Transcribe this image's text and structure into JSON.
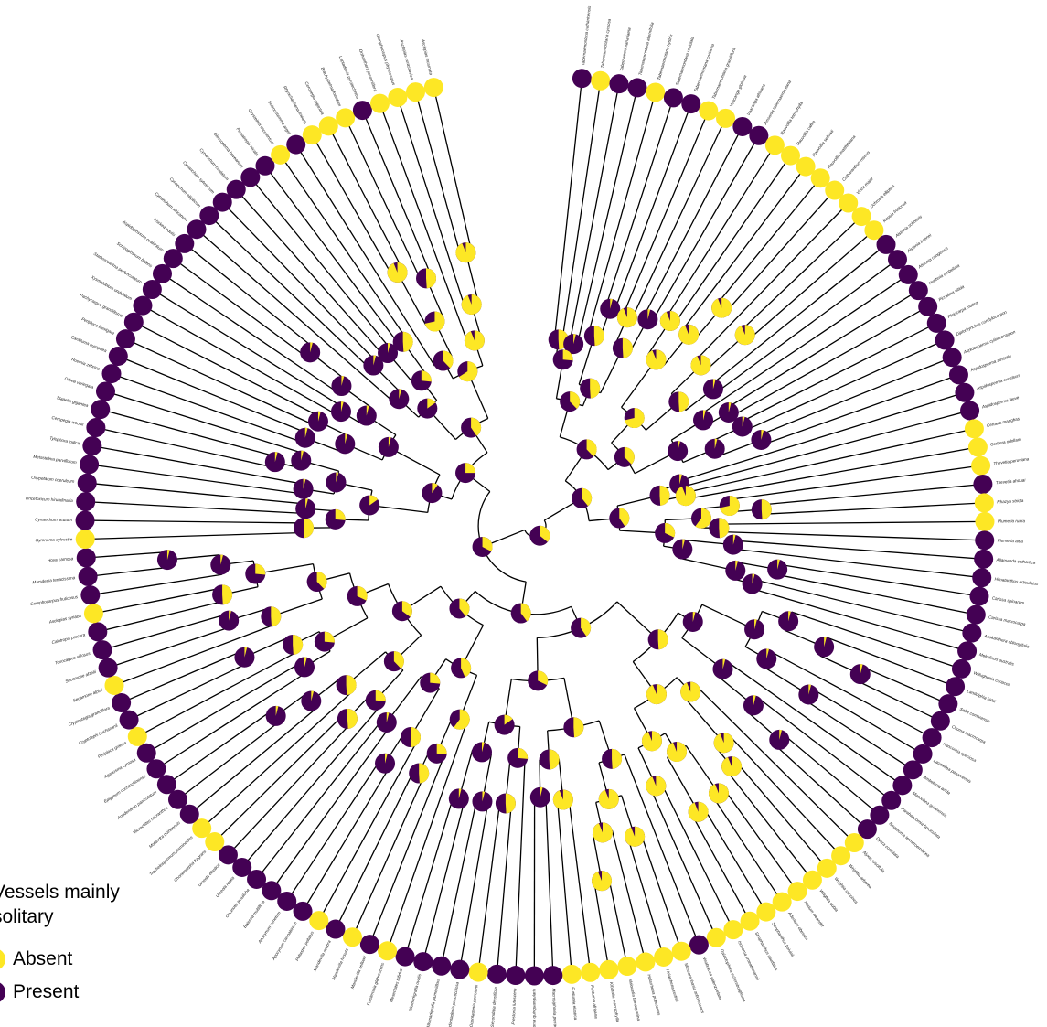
{
  "figure": {
    "legend": {
      "title": "Vessels mainly\nsolitary",
      "entries": [
        {
          "label": "Absent",
          "color": "#fde725"
        },
        {
          "label": "Present",
          "color": "#440154"
        }
      ]
    },
    "state_colors": {
      "absent": "#fde725",
      "present": "#440154"
    },
    "tips": [
      {
        "name": "Tabernaemontana catharinensis",
        "state": "present"
      },
      {
        "name": "Tabernaemontana cymosa",
        "state": "absent"
      },
      {
        "name": "Tabernaemontana laeta",
        "state": "present"
      },
      {
        "name": "Tabernaemontana alternifolia",
        "state": "present"
      },
      {
        "name": "Tabernaemontana hystrix",
        "state": "absent"
      },
      {
        "name": "Tabernaemontana undulata",
        "state": "present"
      },
      {
        "name": "Tabernaemontana coriacea",
        "state": "present"
      },
      {
        "name": "Tabernaemontana grandiflora",
        "state": "absent"
      },
      {
        "name": "Voacanga globosa",
        "state": "absent"
      },
      {
        "name": "Voacanga africana",
        "state": "present"
      },
      {
        "name": "Amsonia tabernaemontana",
        "state": "present"
      },
      {
        "name": "Rauvolfia tetraphylla",
        "state": "absent"
      },
      {
        "name": "Rauvolfia caffra",
        "state": "absent"
      },
      {
        "name": "Rauvolfia sellowii",
        "state": "absent"
      },
      {
        "name": "Rauvolfia mattfeldiana",
        "state": "absent"
      },
      {
        "name": "Catharanthus roseus",
        "state": "absent"
      },
      {
        "name": "Vinca major",
        "state": "absent"
      },
      {
        "name": "Ochrosia elliptica",
        "state": "absent"
      },
      {
        "name": "Kopsia fruticosa",
        "state": "absent"
      },
      {
        "name": "Alstonia scholaris",
        "state": "present"
      },
      {
        "name": "Alstonia boonei",
        "state": "present"
      },
      {
        "name": "Alstonia congensis",
        "state": "present"
      },
      {
        "name": "Hunteria umbellata",
        "state": "present"
      },
      {
        "name": "Picralima nitida",
        "state": "present"
      },
      {
        "name": "Pleiocarpa mutica",
        "state": "present"
      },
      {
        "name": "Diplorhynchus condylocarpon",
        "state": "present"
      },
      {
        "name": "Aspidosperma cylindrocarpon",
        "state": "present"
      },
      {
        "name": "Aspidosperma australe",
        "state": "present"
      },
      {
        "name": "Aspidosperma excelsum",
        "state": "present"
      },
      {
        "name": "Aspidosperma laeve",
        "state": "present"
      },
      {
        "name": "Cerbera manghas",
        "state": "absent"
      },
      {
        "name": "Cerbera odollam",
        "state": "absent"
      },
      {
        "name": "Thevetia peruviana",
        "state": "absent"
      },
      {
        "name": "Thevetia ahouai",
        "state": "present"
      },
      {
        "name": "Rhazya stricta",
        "state": "absent"
      },
      {
        "name": "Plumeria rubra",
        "state": "absent"
      },
      {
        "name": "Plumeria alba",
        "state": "present"
      },
      {
        "name": "Allamanda cathartica",
        "state": "present"
      },
      {
        "name": "Himatanthus articulatus",
        "state": "present"
      },
      {
        "name": "Carissa spinarum",
        "state": "present"
      },
      {
        "name": "Carissa macrocarpa",
        "state": "present"
      },
      {
        "name": "Acokanthera oblongifolia",
        "state": "present"
      },
      {
        "name": "Melodinus australis",
        "state": "present"
      },
      {
        "name": "Willughbeia coriacea",
        "state": "present"
      },
      {
        "name": "Landolphia kirkii",
        "state": "present"
      },
      {
        "name": "Saba comorensis",
        "state": "present"
      },
      {
        "name": "Couma macrocarpa",
        "state": "present"
      },
      {
        "name": "Hancornia speciosa",
        "state": "present"
      },
      {
        "name": "Lacmellea panamensis",
        "state": "present"
      },
      {
        "name": "Ambelania acida",
        "state": "present"
      },
      {
        "name": "Macoubea guianensis",
        "state": "present"
      },
      {
        "name": "Parahancornia fasciculata",
        "state": "present"
      },
      {
        "name": "Neocouma ternstroemiacea",
        "state": "present"
      },
      {
        "name": "Dyera costulata",
        "state": "present"
      },
      {
        "name": "Alyxia ruscifolia",
        "state": "absent"
      },
      {
        "name": "Wrightia arborea",
        "state": "absent"
      },
      {
        "name": "Wrightia coccinea",
        "state": "absent"
      },
      {
        "name": "Wrightia dubia",
        "state": "absent"
      },
      {
        "name": "Nerium oleander",
        "state": "absent"
      },
      {
        "name": "Adenium obesum",
        "state": "absent"
      },
      {
        "name": "Strophanthus boivinii",
        "state": "absent"
      },
      {
        "name": "Strophanthus caudatus",
        "state": "absent"
      },
      {
        "name": "Isonema smeathmannii",
        "state": "absent"
      },
      {
        "name": "Galactophora schomburgkiana",
        "state": "absent"
      },
      {
        "name": "Neobracea valenzuelana",
        "state": "present"
      },
      {
        "name": "Mascarenhasia arborescens",
        "state": "absent"
      },
      {
        "name": "Holarrhena curtisii",
        "state": "absent"
      },
      {
        "name": "Holarrhena pubescens",
        "state": "absent"
      },
      {
        "name": "Malouetia tamaquarina",
        "state": "absent"
      },
      {
        "name": "Kibatalia macrophylla",
        "state": "absent"
      },
      {
        "name": "Funtumia africana",
        "state": "absent"
      },
      {
        "name": "Funtumia elastica",
        "state": "absent"
      },
      {
        "name": "Macrosiphonia petraea",
        "state": "present"
      },
      {
        "name": "Prestonia quinquangularis",
        "state": "present"
      },
      {
        "name": "Prestonia lutescens",
        "state": "present"
      },
      {
        "name": "Secondatia densiflora",
        "state": "present"
      },
      {
        "name": "Odontadenia perrottetii",
        "state": "absent"
      },
      {
        "name": "Odontadenia puncticulosa",
        "state": "present"
      },
      {
        "name": "Allomarkgrafia plumeriiflora",
        "state": "present"
      },
      {
        "name": "Allomarkgrafia ovalis",
        "state": "present"
      },
      {
        "name": "Mesechites trifidus",
        "state": "present"
      },
      {
        "name": "Forsteronia glabrescens",
        "state": "absent"
      },
      {
        "name": "Mandevilla sellowii",
        "state": "present"
      },
      {
        "name": "Mandevilla hirsuta",
        "state": "absent"
      },
      {
        "name": "Mandevilla scabra",
        "state": "present"
      },
      {
        "name": "Peltastes peltatus",
        "state": "absent"
      },
      {
        "name": "Apocynum cannabinum",
        "state": "present"
      },
      {
        "name": "Apocynum venetum",
        "state": "present"
      },
      {
        "name": "Baissea multiflora",
        "state": "present"
      },
      {
        "name": "Oncinotis tenuiloba",
        "state": "present"
      },
      {
        "name": "Urceola rosea",
        "state": "present"
      },
      {
        "name": "Urceola elastica",
        "state": "present"
      },
      {
        "name": "Chonemorpha fragrans",
        "state": "absent"
      },
      {
        "name": "Trachelospermum jasminoides",
        "state": "absent"
      },
      {
        "name": "Motandra guineensis",
        "state": "present"
      },
      {
        "name": "Microchites micranthus",
        "state": "present"
      },
      {
        "name": "Anodendron paniculatum",
        "state": "present"
      },
      {
        "name": "Epigynum cochinchinense",
        "state": "present"
      },
      {
        "name": "Aganosma cymosa",
        "state": "present"
      },
      {
        "name": "Periploca graeca",
        "state": "absent"
      },
      {
        "name": "Cryptolepis buchananii",
        "state": "present"
      },
      {
        "name": "Cryptostegia grandiflora",
        "state": "present"
      },
      {
        "name": "Secamone alpini",
        "state": "absent"
      },
      {
        "name": "Secamone afzelii",
        "state": "present"
      },
      {
        "name": "Toxocarpus villosus",
        "state": "present"
      },
      {
        "name": "Calotropis procera",
        "state": "present"
      },
      {
        "name": "Asclepias syriaca",
        "state": "absent"
      },
      {
        "name": "Gomphocarpus fruticosus",
        "state": "present"
      },
      {
        "name": "Marsdenia tenacissima",
        "state": "present"
      },
      {
        "name": "Hoya carnosa",
        "state": "present"
      },
      {
        "name": "Gymnema sylvestre",
        "state": "absent"
      },
      {
        "name": "Cynanchum acutum",
        "state": "present"
      },
      {
        "name": "Vincetoxicum hirundinaria",
        "state": "present"
      },
      {
        "name": "Oxypetalum coeruleum",
        "state": "present"
      },
      {
        "name": "Metastelma parviflorum",
        "state": "present"
      },
      {
        "name": "Tylophora indica",
        "state": "present"
      },
      {
        "name": "Ceropegia woodii",
        "state": "present"
      },
      {
        "name": "Stapelia gigantea",
        "state": "present"
      },
      {
        "name": "Orbea variegata",
        "state": "present"
      },
      {
        "name": "Huernia zebrina",
        "state": "present"
      },
      {
        "name": "Caralluma europaea",
        "state": "present"
      },
      {
        "name": "Periploca laevigata",
        "state": "present"
      },
      {
        "name": "Pachycarpus grandiflorus",
        "state": "present"
      },
      {
        "name": "Xysmalobium undulatum",
        "state": "present"
      },
      {
        "name": "Stathmostelma pedunculatum",
        "state": "present"
      },
      {
        "name": "Schizoglossum bidens",
        "state": "present"
      },
      {
        "name": "Aspidoglossum ovalifolium",
        "state": "present"
      },
      {
        "name": "Fockea edulis",
        "state": "present"
      },
      {
        "name": "Cynanchum africanum",
        "state": "present"
      },
      {
        "name": "Cynanchum ellipticum",
        "state": "present"
      },
      {
        "name": "Cynanchum sylvaticum",
        "state": "present"
      },
      {
        "name": "Cynanchum cordatum",
        "state": "present"
      },
      {
        "name": "Glossonema boveanum",
        "state": "present"
      },
      {
        "name": "Pentatropis nivalis",
        "state": "present"
      },
      {
        "name": "Oxystelma esculentum",
        "state": "absent"
      },
      {
        "name": "Solenostemma argel",
        "state": "present"
      },
      {
        "name": "Rhyncharrhena linearis",
        "state": "absent"
      },
      {
        "name": "Ceropegia gigantea",
        "state": "absent"
      },
      {
        "name": "Brachystelma foetidum",
        "state": "absent"
      },
      {
        "name": "Leptadenia pyrotechnica",
        "state": "present"
      },
      {
        "name": "Orthanthera jasminiflora",
        "state": "absent"
      },
      {
        "name": "Gomphocarpus physocarpus",
        "state": "absent"
      },
      {
        "name": "Asclepias curassavica",
        "state": "absent"
      },
      {
        "name": "Asclepias incarnata",
        "state": "absent"
      }
    ]
  }
}
